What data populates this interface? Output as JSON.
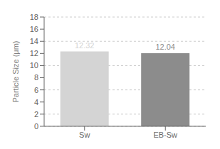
{
  "chart_data": {
    "type": "bar",
    "categories": [
      "Sw",
      "EB-Sw"
    ],
    "values": [
      12.32,
      12.04
    ],
    "colors": [
      "#d4d4d4",
      "#8c8c8c"
    ],
    "ylabel": "Particle Size (μm)",
    "ylim": [
      0,
      18
    ],
    "yticks": [
      0,
      2,
      4,
      6,
      8,
      10,
      12,
      14,
      16,
      18
    ],
    "grid": true,
    "data_labels": true
  }
}
